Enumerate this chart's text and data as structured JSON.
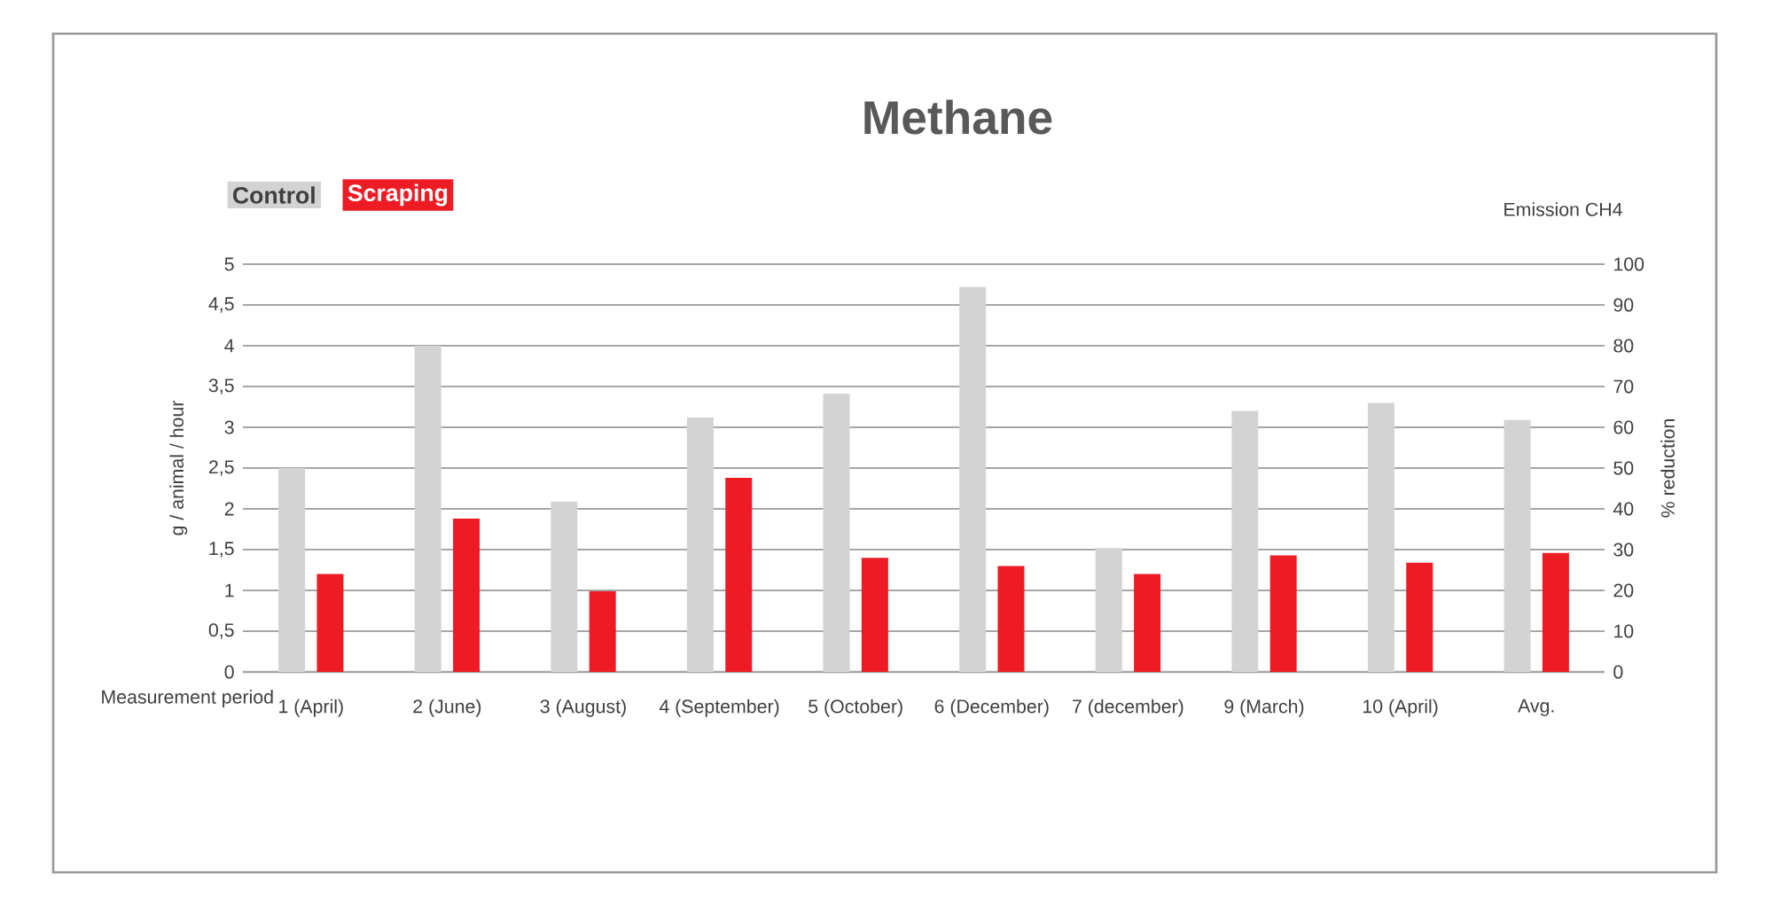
{
  "chart_data": {
    "type": "bar",
    "title": "Methane",
    "xlabel": "Measurement period",
    "ylabel": "g / animal / hour",
    "y2label": "% reduction",
    "annotations": [
      "Emission CH4"
    ],
    "categories": [
      "1 (April)",
      "2 (June)",
      "3 (August)",
      "4 (September)",
      "5 (October)",
      "6 (December)",
      "7 (december)",
      "9 (March)",
      "10 (April)",
      "Avg."
    ],
    "series": [
      {
        "name": "Control",
        "color": "#d3d3d3",
        "values": [
          2.5,
          4.0,
          2.09,
          3.12,
          3.41,
          4.72,
          1.52,
          3.2,
          3.3,
          3.09
        ]
      },
      {
        "name": "Scraping",
        "color": "#ed1c24",
        "values": [
          1.2,
          1.88,
          0.99,
          2.38,
          1.4,
          1.3,
          1.2,
          1.43,
          1.34,
          1.46
        ]
      }
    ],
    "ylim": [
      0,
      5
    ],
    "yticks": [
      0,
      {
        "value": 0.5,
        "label": "0,5"
      },
      1,
      {
        "value": 1.5,
        "label": "1,5"
      },
      2,
      {
        "value": 2.5,
        "label": "2,5"
      },
      3,
      {
        "value": 3.5,
        "label": "3,5"
      },
      4,
      {
        "value": 4.5,
        "label": "4,5"
      },
      5
    ],
    "y2lim": [
      0,
      100
    ],
    "y2ticks": [
      0,
      10,
      20,
      30,
      40,
      50,
      60,
      70,
      80,
      90,
      100
    ],
    "grid": "y",
    "legend": "top left"
  }
}
